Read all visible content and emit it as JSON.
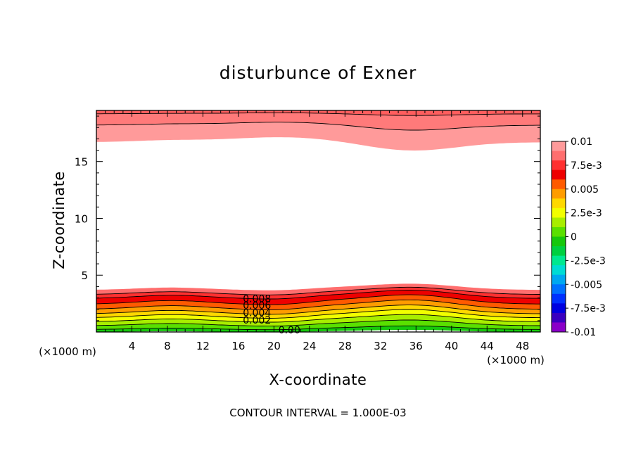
{
  "chart_data": {
    "type": "contour",
    "title": "disturbunce of Exner",
    "xlabel": "X-coordinate",
    "ylabel": "Z-coordinate",
    "x_unit": "(×1000 m)",
    "x_unit_right": "(×1000 m)",
    "xlim": [
      0,
      50
    ],
    "ylim": [
      0,
      19.5
    ],
    "x_ticks": [
      4,
      8,
      12,
      16,
      20,
      24,
      28,
      32,
      36,
      40,
      44,
      48
    ],
    "y_ticks": [
      5,
      10,
      15
    ],
    "contour_interval_text": "CONTOUR INTERVAL = 1.000E-03",
    "contour_labels": [
      "0.008",
      "0.006",
      "0.004",
      "0.002",
      "0.00"
    ],
    "colorbar": {
      "tick_labels": [
        "0.01",
        "7.5e-3",
        "0.005",
        "2.5e-3",
        "0",
        "-2.5e-3",
        "-0.005",
        "-7.5e-3",
        "-0.01"
      ],
      "tick_values": [
        0.01,
        0.0075,
        0.005,
        0.0025,
        0,
        -0.0025,
        -0.005,
        -0.0075,
        -0.01
      ],
      "colors_top_to_bottom": [
        "#ff9a9a",
        "#ff6e6e",
        "#ff3030",
        "#ee0000",
        "#ff5a00",
        "#ff9c00",
        "#ffd800",
        "#f2ff00",
        "#a8ee00",
        "#5ae000",
        "#16c80c",
        "#00d040",
        "#00e890",
        "#00dcd4",
        "#00a8f0",
        "#0070ff",
        "#0030ff",
        "#0000e0",
        "#3a00c0",
        "#8a00c8"
      ]
    }
  }
}
